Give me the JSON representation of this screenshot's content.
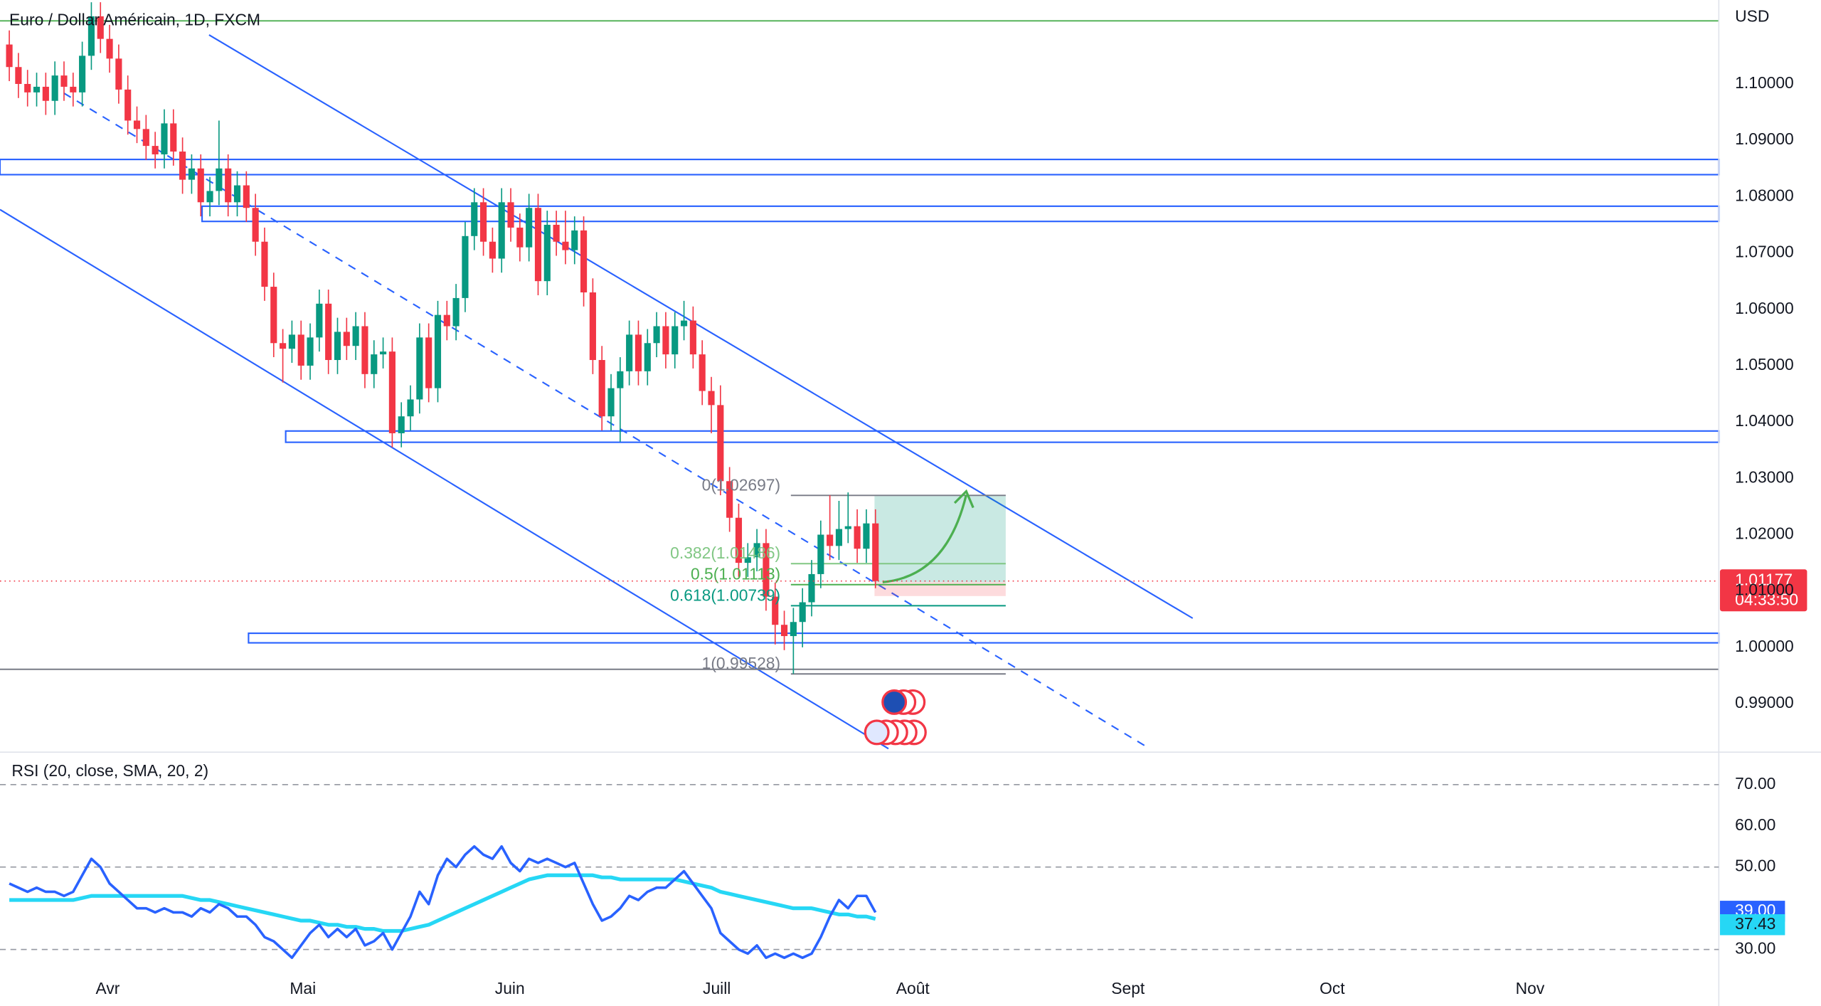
{
  "chart_data": [
    {
      "type": "candlestick",
      "title": "Euro / Dollar Américain, 1D, FXCM",
      "currency": "USD",
      "up_color": "#089981",
      "down_color": "#f23645",
      "open": [
        1.107,
        1.103,
        1.1,
        1.0985,
        1.0995,
        1.097,
        1.1015,
        1.0995,
        1.0985,
        1.105,
        1.112,
        1.108,
        1.1045,
        1.099,
        1.0935,
        1.092,
        1.089,
        1.0875,
        1.093,
        1.088,
        1.083,
        1.085,
        1.079,
        1.081,
        1.085,
        1.079,
        1.082,
        1.078,
        1.072,
        1.064,
        1.054,
        1.053,
        1.0555,
        1.05,
        1.055,
        1.061,
        1.051,
        1.056,
        1.0535,
        1.057,
        1.0485,
        1.052,
        1.0525,
        1.038,
        1.041,
        1.044,
        1.055,
        1.046,
        1.059,
        1.057,
        1.062,
        1.073,
        1.079,
        1.072,
        1.069,
        1.079,
        1.0745,
        1.071,
        1.078,
        1.065,
        1.075,
        1.072,
        1.0705,
        1.074,
        1.063,
        1.051,
        1.041,
        1.046,
        1.049,
        1.0555,
        1.049,
        1.054,
        1.057,
        1.052,
        1.057,
        1.058,
        1.052,
        1.0455,
        1.043,
        1.0295,
        1.023,
        1.015,
        1.016,
        1.0185,
        1.009,
        1.004,
        1.002,
        1.0045,
        1.008,
        1.013,
        1.02,
        1.018,
        1.021,
        1.0215,
        1.0175,
        1.022
      ],
      "high": [
        1.1095,
        1.1055,
        1.1025,
        1.102,
        1.102,
        1.104,
        1.104,
        1.102,
        1.1075,
        1.1145,
        1.1145,
        1.1105,
        1.107,
        1.1015,
        1.096,
        1.0945,
        1.0915,
        1.0955,
        1.0955,
        1.0905,
        1.0875,
        1.0875,
        1.0835,
        1.0935,
        1.0875,
        1.0845,
        1.0845,
        1.0805,
        1.0745,
        1.0665,
        1.0565,
        1.058,
        1.058,
        1.0575,
        1.0635,
        1.0635,
        1.0585,
        1.0585,
        1.0595,
        1.0595,
        1.0545,
        1.055,
        1.055,
        1.0435,
        1.0465,
        1.0575,
        1.0575,
        1.0615,
        1.0615,
        1.0645,
        1.0755,
        1.0815,
        1.0815,
        1.0745,
        1.0815,
        1.0815,
        1.077,
        1.0805,
        1.0805,
        1.0775,
        1.0775,
        1.0775,
        1.0765,
        1.0765,
        1.0655,
        1.0535,
        1.0485,
        1.0515,
        1.058,
        1.058,
        1.0565,
        1.0595,
        1.0595,
        1.0595,
        1.0615,
        1.0605,
        1.0545,
        1.048,
        1.0465,
        1.032,
        1.0255,
        1.0185,
        1.021,
        1.021,
        1.0115,
        1.0065,
        1.007,
        1.0105,
        1.0155,
        1.0225,
        1.027,
        1.026,
        1.0275,
        1.0245,
        1.0245,
        1.0245
      ],
      "low": [
        1.1005,
        1.0975,
        1.096,
        1.096,
        1.0945,
        1.0945,
        1.097,
        1.096,
        1.096,
        1.1025,
        1.1055,
        1.102,
        1.0965,
        1.091,
        1.0895,
        1.0865,
        1.085,
        1.085,
        1.0855,
        1.0805,
        1.0805,
        1.0765,
        1.0765,
        1.0785,
        1.0765,
        1.0765,
        1.0755,
        1.0695,
        1.0615,
        1.0515,
        1.047,
        1.0505,
        1.0475,
        1.0475,
        1.0525,
        1.0485,
        1.0485,
        1.051,
        1.051,
        1.046,
        1.046,
        1.0495,
        1.0355,
        1.0355,
        1.0385,
        1.0415,
        1.0435,
        1.0435,
        1.0545,
        1.0545,
        1.0595,
        1.0705,
        1.0695,
        1.0665,
        1.0665,
        1.072,
        1.0685,
        1.0685,
        1.0625,
        1.0625,
        1.0695,
        1.068,
        1.068,
        1.0605,
        1.0485,
        1.0385,
        1.0385,
        1.0365,
        1.0465,
        1.0465,
        1.0465,
        1.0515,
        1.0495,
        1.0495,
        1.0545,
        1.0495,
        1.043,
        1.038,
        1.027,
        1.0205,
        1.0125,
        1.0125,
        1.0135,
        1.0065,
        1.0005,
        0.9995,
        0.9953,
        1.0,
        1.0055,
        1.0105,
        1.0155,
        1.0155,
        1.0185,
        1.015,
        1.015,
        1.0105
      ],
      "close": [
        1.103,
        1.1,
        1.0985,
        1.0995,
        1.097,
        1.1015,
        1.0995,
        1.0985,
        1.105,
        1.112,
        1.108,
        1.1045,
        1.099,
        1.0935,
        1.092,
        1.089,
        1.0875,
        1.093,
        1.088,
        1.083,
        1.085,
        1.079,
        1.081,
        1.085,
        1.079,
        1.082,
        1.078,
        1.072,
        1.064,
        1.054,
        1.053,
        1.0555,
        1.05,
        1.055,
        1.061,
        1.051,
        1.056,
        1.0535,
        1.057,
        1.0485,
        1.052,
        1.0525,
        1.038,
        1.041,
        1.044,
        1.055,
        1.046,
        1.059,
        1.057,
        1.062,
        1.073,
        1.079,
        1.072,
        1.069,
        1.079,
        1.0745,
        1.071,
        1.078,
        1.065,
        1.075,
        1.072,
        1.0705,
        1.074,
        1.063,
        1.051,
        1.041,
        1.046,
        1.049,
        1.0555,
        1.049,
        1.054,
        1.057,
        1.052,
        1.057,
        1.058,
        1.052,
        1.0455,
        1.043,
        1.0295,
        1.023,
        1.015,
        1.016,
        1.0185,
        1.009,
        1.004,
        1.002,
        1.0045,
        1.008,
        1.013,
        1.02,
        1.018,
        1.021,
        1.0215,
        1.0175,
        1.022,
        1.01177
      ],
      "xlim": [
        -1.02,
        187.5
      ],
      "xticks": [
        {
          "value": 10.8,
          "label": "Avr"
        },
        {
          "value": 32.2,
          "label": "Mai"
        },
        {
          "value": 54.9,
          "label": "Juin"
        },
        {
          "value": 77.6,
          "label": "Juill"
        },
        {
          "value": 99.1,
          "label": "Août"
        },
        {
          "value": 122.7,
          "label": "Sept"
        },
        {
          "value": 145.1,
          "label": "Oct"
        },
        {
          "value": 166.8,
          "label": "Nov"
        }
      ],
      "ylim": [
        0.9816,
        1.1149
      ],
      "yticks": [
        {
          "value": 0.99,
          "label": "0.99000"
        },
        {
          "value": 1.0,
          "label": "1.00000"
        },
        {
          "value": 1.01,
          "label": "1.01000"
        },
        {
          "value": 1.02,
          "label": "1.02000"
        },
        {
          "value": 1.03,
          "label": "1.03000"
        },
        {
          "value": 1.04,
          "label": "1.04000"
        },
        {
          "value": 1.05,
          "label": "1.05000"
        },
        {
          "value": 1.06,
          "label": "1.06000"
        },
        {
          "value": 1.07,
          "label": "1.07000"
        },
        {
          "value": 1.08,
          "label": "1.08000"
        },
        {
          "value": 1.09,
          "label": "1.09000"
        },
        {
          "value": 1.1,
          "label": "1.10000"
        }
      ],
      "grid": true,
      "current_price": {
        "value": 1.01177,
        "label": "1.01177",
        "countdown": "04:33:50",
        "color": "#f23645"
      },
      "levels": [
        {
          "price": 1.1112,
          "color": "#4caf50"
        },
        {
          "price": 0.9961,
          "color": "#787b86"
        }
      ],
      "zones": [
        {
          "top": 1.0866,
          "bottom": 1.0839,
          "color": "#2962ff"
        },
        {
          "top": 1.0783,
          "bottom": 1.0756,
          "color": "#2962ff"
        },
        {
          "top": 1.0384,
          "bottom": 1.0364,
          "color": "#2962ff"
        },
        {
          "top": 1.0025,
          "bottom": 1.0008,
          "color": "#2962ff"
        }
      ],
      "fibonacci": [
        {
          "price": 1.02697,
          "label": "0(1.02697)",
          "color": "#787b86"
        },
        {
          "price": 1.01486,
          "label": "0.382(1.01486)",
          "color": "#81c784"
        },
        {
          "price": 1.01113,
          "label": "0.5(1.01113)",
          "color": "#4caf50"
        },
        {
          "price": 1.00739,
          "label": "0.618(1.00739)",
          "color": "#089981"
        },
        {
          "price": 0.99528,
          "label": "1(0.99528)",
          "color": "#787b86"
        }
      ],
      "position": {
        "entry": 1.01157,
        "target": 1.02686,
        "stop": 1.0091
      }
    },
    {
      "type": "line",
      "title": "RSI (20, close, SMA, 20, 2)",
      "ylim": [
        25.9,
        77.3
      ],
      "yticks": [
        {
          "value": 30,
          "label": "30.00"
        },
        {
          "value": 50,
          "label": "50.00"
        },
        {
          "value": 60,
          "label": "60.00"
        },
        {
          "value": 70,
          "label": "70.00"
        }
      ],
      "bands": [
        70,
        50,
        30
      ],
      "series": [
        {
          "name": "RSI",
          "color": "#2962ff",
          "last_label": "39.00",
          "values": [
            46,
            45,
            44,
            45,
            44,
            44,
            43,
            44,
            48,
            52,
            50,
            46,
            44,
            42,
            40,
            40,
            39,
            40,
            39,
            39,
            38,
            40,
            39,
            41,
            40,
            38,
            38,
            36,
            33,
            32,
            30,
            28,
            31,
            34,
            36,
            33,
            35,
            33,
            35,
            31,
            32,
            34,
            30,
            34,
            38,
            44,
            41,
            48,
            52,
            50,
            53,
            55,
            53,
            52,
            55,
            51,
            49,
            52,
            51,
            52,
            51,
            50,
            51,
            46,
            41,
            37,
            38,
            40,
            43,
            42,
            44,
            45,
            45,
            47,
            49,
            46,
            43,
            40,
            34,
            32,
            30,
            29,
            31,
            28,
            29,
            28,
            29,
            28,
            29,
            33,
            38,
            42,
            40,
            43,
            43,
            39.0
          ]
        },
        {
          "name": "SMA",
          "color": "#26d7f5",
          "last_label": "37.43",
          "values": [
            42,
            42,
            42,
            42,
            42,
            42,
            42,
            42,
            42.5,
            43,
            43,
            43,
            43,
            43,
            43,
            43,
            43,
            43,
            43,
            43,
            42.5,
            42,
            42,
            41.5,
            41,
            40.5,
            40,
            39.5,
            39,
            38.5,
            38,
            37.5,
            37,
            37,
            36.5,
            36,
            36,
            35.5,
            35.5,
            35,
            35,
            34.5,
            34.5,
            34.5,
            35,
            35.5,
            36,
            37,
            38,
            39,
            40,
            41,
            42,
            43,
            44,
            45,
            46,
            47,
            47.5,
            48,
            48,
            48,
            48,
            48,
            48,
            47.5,
            47.5,
            47,
            47,
            47,
            47,
            47,
            47,
            47,
            46.5,
            46,
            45.5,
            45,
            44,
            43.5,
            43,
            42.5,
            42,
            41.5,
            41,
            40.5,
            40,
            40,
            40,
            39.5,
            39,
            38.5,
            38.5,
            38,
            38,
            37.43
          ]
        }
      ]
    }
  ]
}
